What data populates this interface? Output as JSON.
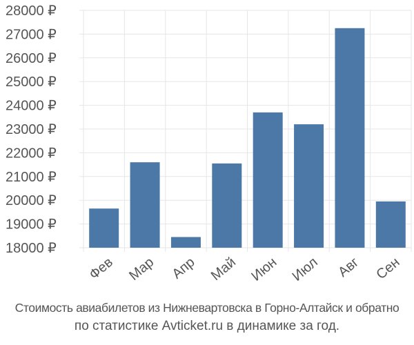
{
  "chart_data": {
    "type": "bar",
    "categories": [
      "Фев",
      "Мар",
      "Апр",
      "Май",
      "Июн",
      "Июл",
      "Авг",
      "Сен"
    ],
    "values": [
      19650,
      21600,
      18450,
      21550,
      23700,
      23200,
      27250,
      19950
    ],
    "ylim": [
      18000,
      28000
    ],
    "yticks": [
      18000,
      19000,
      20000,
      21000,
      22000,
      23000,
      24000,
      25000,
      26000,
      27000,
      28000
    ],
    "currency_suffix": " ₽",
    "grid": true,
    "legend": "none"
  },
  "colors": {
    "bar": "#4c78a8",
    "grid": "#e6e6e6",
    "axis_text": "#555555"
  },
  "caption": {
    "line1": "Стоимость авиабилетов из Нижневартовска в Горно-Алтайск и обратно",
    "line2": "по статистике Avticket.ru в динамике за год."
  }
}
